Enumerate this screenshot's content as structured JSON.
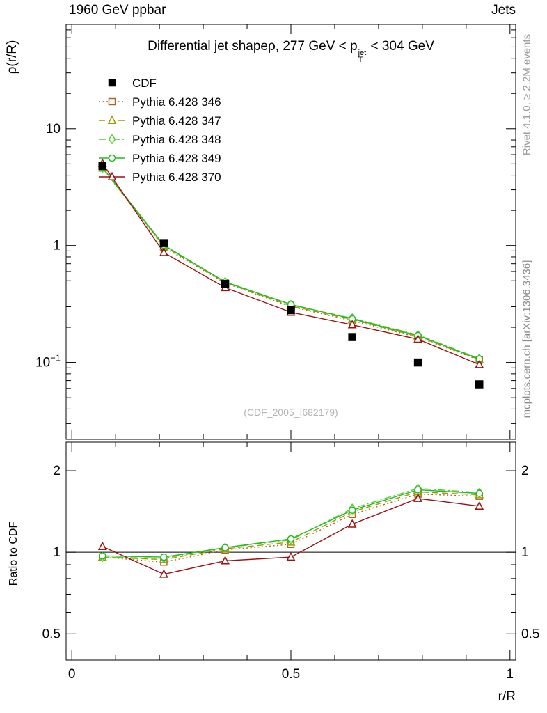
{
  "header": {
    "top_left": "1960 GeV ppbar",
    "top_right": "Jets"
  },
  "side_notes": {
    "rivet": "Rivet 4.1.0, ≥ 2.2M events",
    "mcplots": "mcplots.cern.ch [arXiv:1306.3436]"
  },
  "watermark": "(CDF_2005_I682179)",
  "chart_data": {
    "type": "line",
    "title": {
      "pre": "Differential jet shapeρ, 277 GeV < p",
      "sup": "jet",
      "sub": "T",
      "post": " < 304 GeV"
    },
    "xlabel": "r/R",
    "ylabel": "ρ(r/R)",
    "ratio_label": "Ratio to CDF",
    "legend_position": "top-left",
    "grid": false,
    "x": [
      0.07,
      0.21,
      0.35,
      0.5,
      0.64,
      0.79,
      0.93
    ],
    "xlim": [
      -0.013,
      1.013
    ],
    "xticks": [
      {
        "v": 0,
        "label": "0"
      },
      {
        "v": 0.5,
        "label": "0.5"
      },
      {
        "v": 1,
        "label": "1"
      }
    ],
    "main_panel": {
      "yscale": "log",
      "ylim": [
        0.022,
        78
      ],
      "yticks": [
        {
          "v": 10,
          "label": "10"
        },
        {
          "v": 1,
          "label": "1"
        },
        {
          "v": 0.1,
          "label": "10^−1"
        }
      ]
    },
    "ratio_panel": {
      "yscale": "log",
      "ylim": [
        0.4,
        2.55
      ],
      "ref_line": 1,
      "yticks": [
        {
          "v": 2,
          "label": "2"
        },
        {
          "v": 1,
          "label": "1"
        },
        {
          "v": 0.5,
          "label": "0.5"
        }
      ]
    },
    "reference": {
      "name": "CDF",
      "color": "#000000",
      "marker": "square",
      "filled": true,
      "values": [
        4.8,
        1.05,
        0.47,
        0.28,
        0.165,
        0.1,
        0.065
      ]
    },
    "series": [
      {
        "name": "Pythia 6.428 346",
        "color": "#aa6622",
        "line": "dotted",
        "marker": "square",
        "values": [
          4.61,
          0.966,
          0.479,
          0.3,
          0.228,
          0.164,
          0.105
        ],
        "ratio": [
          0.96,
          0.92,
          1.02,
          1.07,
          1.38,
          1.64,
          1.61
        ]
      },
      {
        "name": "Pythia 6.428 347",
        "color": "#9a9a00",
        "line": "dashed",
        "marker": "triangle",
        "values": [
          4.61,
          0.987,
          0.484,
          0.305,
          0.233,
          0.167,
          0.106
        ],
        "ratio": [
          0.96,
          0.94,
          1.03,
          1.09,
          1.41,
          1.67,
          1.63
        ]
      },
      {
        "name": "Pythia 6.428 348",
        "color": "#55cc33",
        "line": "dashdot",
        "marker": "diamond",
        "values": [
          4.61,
          0.998,
          0.489,
          0.311,
          0.239,
          0.172,
          0.108
        ],
        "ratio": [
          0.96,
          0.95,
          1.04,
          1.11,
          1.45,
          1.72,
          1.66
        ]
      },
      {
        "name": "Pythia 6.428 349",
        "color": "#22bb22",
        "line": "solid",
        "marker": "circle",
        "values": [
          4.66,
          1.008,
          0.489,
          0.314,
          0.236,
          0.17,
          0.107
        ],
        "ratio": [
          0.97,
          0.96,
          1.04,
          1.12,
          1.43,
          1.7,
          1.65
        ]
      },
      {
        "name": "Pythia 6.428 370",
        "color": "#991111",
        "line": "solid",
        "marker": "triangle",
        "values": [
          5.04,
          0.872,
          0.437,
          0.269,
          0.21,
          0.158,
          0.096
        ],
        "ratio": [
          1.05,
          0.83,
          0.93,
          0.96,
          1.27,
          1.58,
          1.48
        ]
      }
    ]
  }
}
